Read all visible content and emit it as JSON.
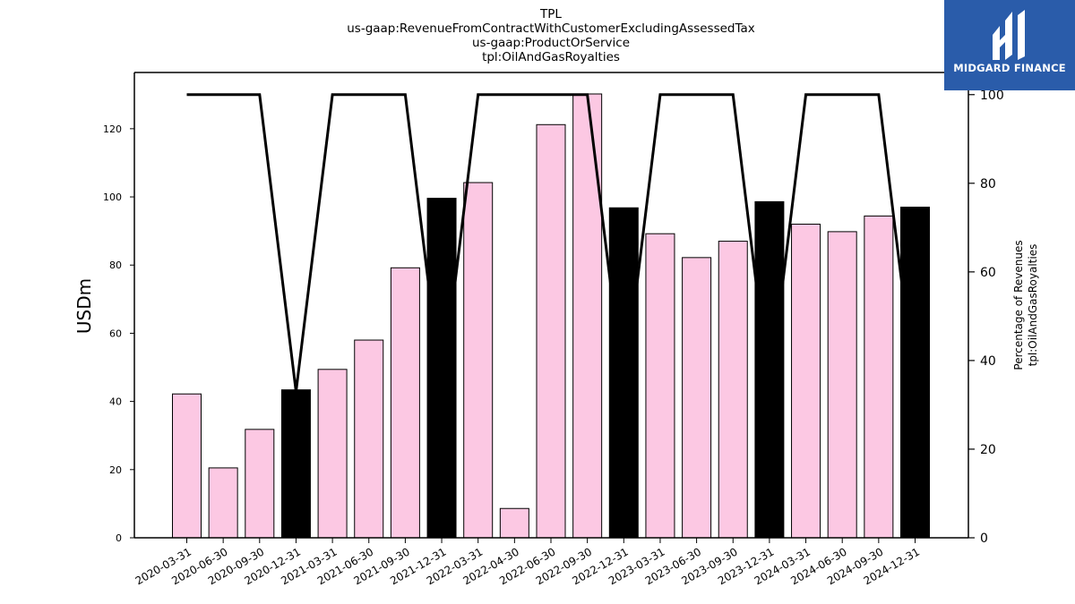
{
  "logo": {
    "brand": "MIDGARD FINANCE"
  },
  "colors": {
    "normal_bar": "#fcc8e3",
    "year_end_bar": "#000000",
    "line": "#000000",
    "logo_bg": "#2a5caa"
  },
  "chart_data": {
    "type": "bar",
    "title_lines": [
      "TPL",
      "us-gaap:RevenueFromContractWithCustomerExcludingAssessedTax",
      "us-gaap:ProductOrService",
      "tpl:OilAndGasRoyalties"
    ],
    "ylabel": "USDm",
    "y2label_lines": [
      "Percentage of Revenues",
      "tpl:OilAndGasRoyalties"
    ],
    "categories": [
      "2020-03-31",
      "2020-06-30",
      "2020-09-30",
      "2020-12-31",
      "2021-03-31",
      "2021-06-30",
      "2021-09-30",
      "2021-12-31",
      "2022-03-31",
      "2022-04-30",
      "2022-06-30",
      "2022-09-30",
      "2022-12-31",
      "2023-03-31",
      "2023-06-30",
      "2023-09-30",
      "2023-12-31",
      "2024-03-31",
      "2024-06-30",
      "2024-09-30",
      "2024-12-31"
    ],
    "values": [
      42.2,
      20.5,
      31.8,
      43.4,
      49.4,
      58.0,
      79.2,
      99.6,
      104.2,
      8.6,
      121.2,
      130.2,
      96.8,
      89.2,
      82.2,
      87.0,
      98.6,
      92.0,
      89.8,
      94.4,
      97.0
    ],
    "year_end_flags": [
      false,
      false,
      false,
      true,
      false,
      false,
      false,
      true,
      false,
      false,
      false,
      false,
      true,
      false,
      false,
      false,
      true,
      false,
      false,
      false,
      true
    ],
    "ylim": [
      0,
      136.5
    ],
    "yticks": [
      0,
      20,
      40,
      60,
      80,
      100,
      120
    ],
    "series": [
      {
        "axis": "right",
        "type": "line",
        "values": [
          100,
          100,
          100,
          33,
          100,
          100,
          100,
          33,
          100,
          100,
          100,
          100,
          33,
          100,
          100,
          100,
          33,
          100,
          100,
          100,
          33
        ]
      }
    ],
    "y2lim": [
      0,
      105
    ],
    "y2ticks": [
      0,
      20,
      40,
      60,
      80,
      100
    ]
  }
}
